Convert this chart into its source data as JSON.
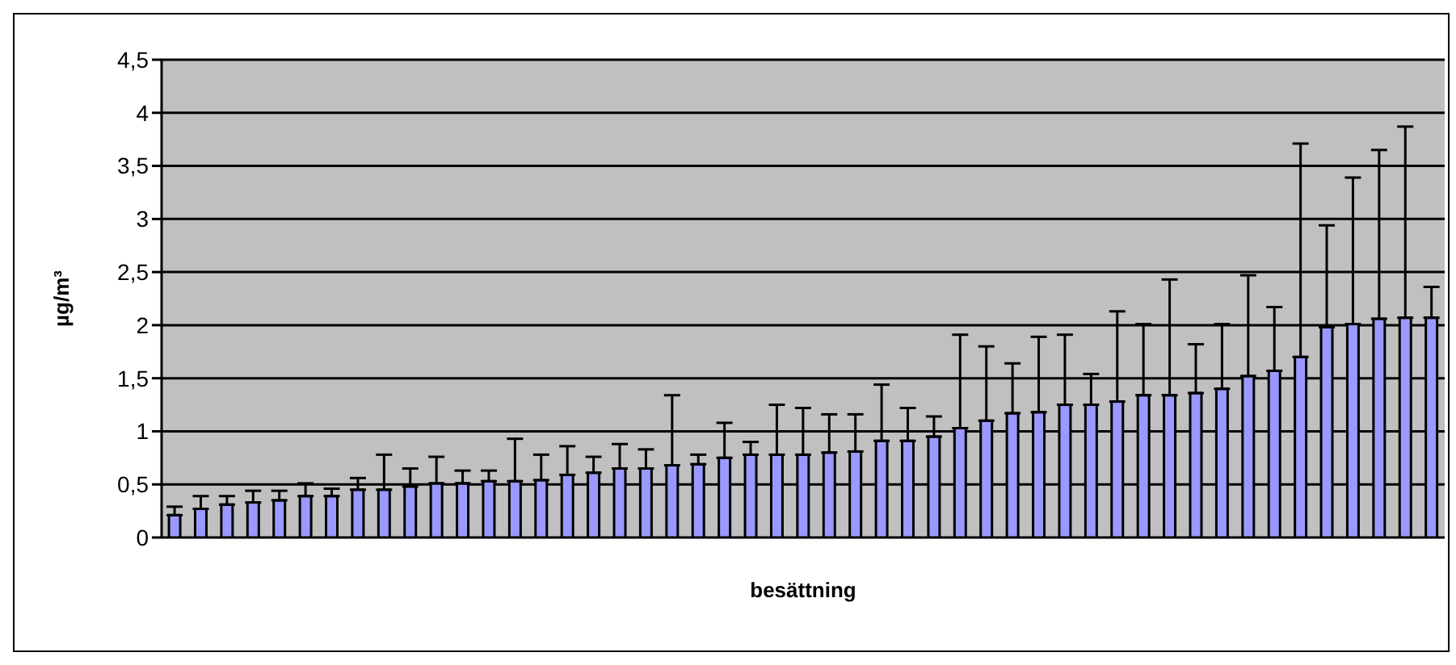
{
  "chart_data": {
    "type": "bar",
    "xlabel": "besättning",
    "ylabel": "µg/m³",
    "categories": [
      null,
      null,
      null,
      null,
      null,
      null,
      null,
      null,
      null,
      null,
      null,
      null,
      null,
      null,
      null,
      null,
      null,
      null,
      null,
      null,
      null,
      null,
      null,
      null,
      null,
      null,
      null,
      null,
      null,
      null,
      null,
      null,
      null,
      null,
      null,
      null,
      null,
      null,
      null,
      null,
      null,
      null,
      null,
      null,
      null,
      null,
      null,
      null,
      null
    ],
    "tick_labels": "y",
    "series": [
      {
        "color": "#9999ff",
        "values": [
          0.21,
          0.27,
          0.31,
          0.33,
          0.35,
          0.39,
          0.39,
          0.45,
          0.45,
          0.48,
          0.51,
          0.51,
          0.53,
          0.53,
          0.54,
          0.59,
          0.61,
          0.65,
          0.65,
          0.68,
          0.69,
          0.75,
          0.78,
          0.78,
          0.78,
          0.8,
          0.81,
          0.91,
          0.91,
          0.95,
          1.03,
          1.1,
          1.17,
          1.18,
          1.25,
          1.25,
          1.28,
          1.34,
          1.34,
          1.36,
          1.4,
          1.52,
          1.57,
          1.7,
          1.98,
          2.01,
          2.06,
          2.07,
          2.07
        ],
        "errors": [
          [
            0.21,
            0.29
          ],
          [
            0.27,
            0.39
          ],
          [
            0.31,
            0.39
          ],
          [
            0.33,
            0.44
          ],
          [
            0.35,
            0.44
          ],
          [
            0.39,
            0.51
          ],
          [
            0.39,
            0.46
          ],
          [
            0.45,
            0.56
          ],
          [
            0.45,
            0.78
          ],
          [
            0.48,
            0.65
          ],
          [
            0.51,
            0.76
          ],
          [
            0.51,
            0.63
          ],
          [
            0.53,
            0.63
          ],
          [
            0.53,
            0.93
          ],
          [
            0.54,
            0.78
          ],
          [
            0.59,
            0.86
          ],
          [
            0.61,
            0.76
          ],
          [
            0.65,
            0.88
          ],
          [
            0.65,
            0.83
          ],
          [
            0.68,
            1.34
          ],
          [
            0.69,
            0.78
          ],
          [
            0.75,
            1.08
          ],
          [
            0.78,
            0.9
          ],
          [
            0.78,
            1.25
          ],
          [
            0.78,
            1.22
          ],
          [
            0.8,
            1.16
          ],
          [
            0.81,
            1.16
          ],
          [
            0.91,
            1.44
          ],
          [
            0.91,
            1.22
          ],
          [
            0.95,
            1.14
          ],
          [
            1.03,
            1.91
          ],
          [
            1.1,
            1.8
          ],
          [
            1.17,
            1.64
          ],
          [
            1.18,
            1.89
          ],
          [
            1.25,
            1.91
          ],
          [
            1.25,
            1.54
          ],
          [
            1.28,
            2.13
          ],
          [
            1.34,
            2.01
          ],
          [
            1.34,
            2.43
          ],
          [
            1.36,
            1.82
          ],
          [
            1.4,
            2.01
          ],
          [
            1.52,
            2.47
          ],
          [
            1.57,
            2.17
          ],
          [
            1.7,
            3.71
          ],
          [
            1.98,
            2.94
          ],
          [
            2.01,
            3.39
          ],
          [
            2.06,
            3.65
          ],
          [
            2.07,
            3.87
          ],
          [
            2.07,
            2.36
          ]
        ]
      }
    ],
    "ylim": [
      0,
      4.5
    ],
    "yticks": [
      0,
      {
        "value": 0.5,
        "label": "0,5"
      },
      1,
      {
        "value": 1.5,
        "label": "1,5"
      },
      2,
      {
        "value": 2.5,
        "label": "2,5"
      },
      3,
      {
        "value": 3.5,
        "label": "3,5"
      },
      4,
      {
        "value": 4.5,
        "label": "4,5"
      }
    ],
    "grid": "y",
    "legend": false
  }
}
